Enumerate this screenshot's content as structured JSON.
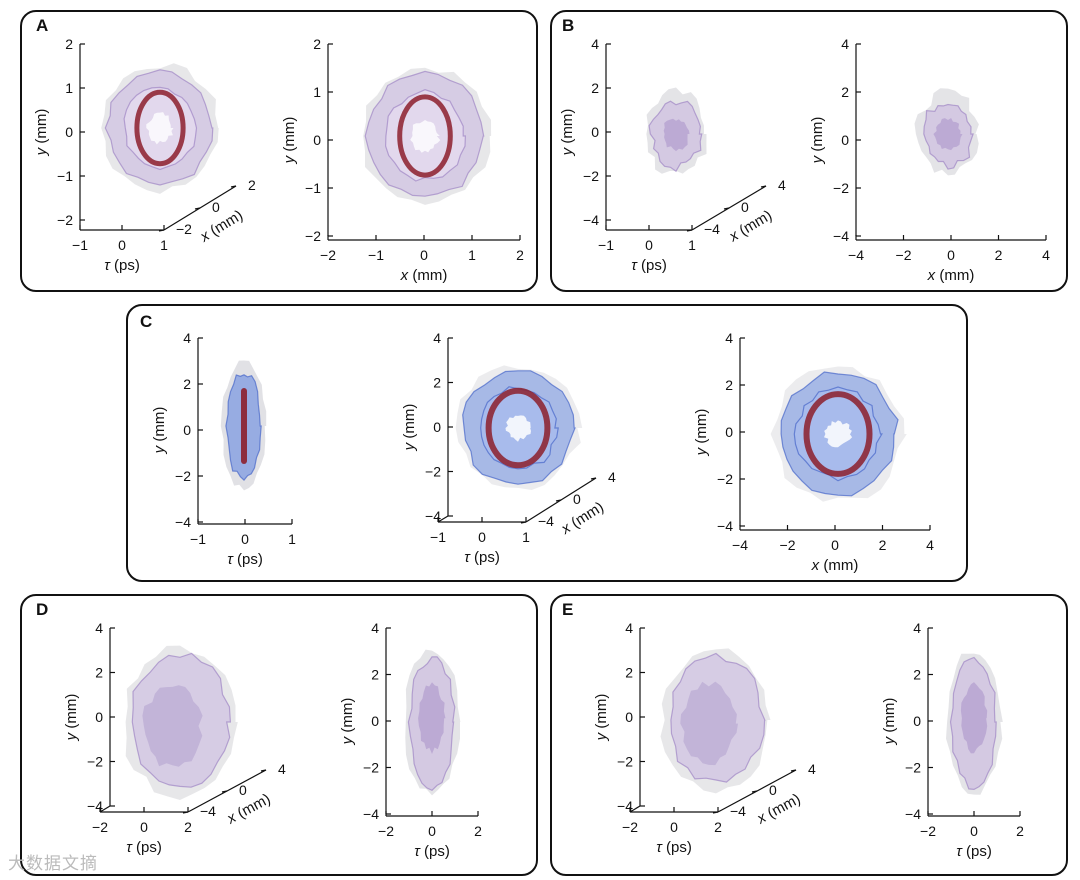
{
  "colors": {
    "lilac": "#c9b7e0",
    "lilac_dark": "#9f86c4",
    "blue": "#6f8fe0",
    "blue_dark": "#4767c9",
    "red": "#8c1f2c",
    "gray": "#c9c9cf"
  },
  "watermark": "大数据文摘",
  "panels": [
    {
      "letter": "A",
      "plots": [
        {
          "kind": "3d",
          "y_label": "y (mm)",
          "y_ticks": [
            "2",
            "1",
            "0",
            "−1",
            "−2"
          ],
          "tau_label": "τ (ps)",
          "tau_ticks": [
            "−1",
            "0",
            "1"
          ],
          "x_label": "x (mm)",
          "x_ticks": [
            "2",
            "0",
            "−2"
          ],
          "blob": "ring-lilac"
        },
        {
          "kind": "2d",
          "y_label": "y (mm)",
          "y_ticks": [
            "2",
            "1",
            "0",
            "−1",
            "−2"
          ],
          "x_label": "x (mm)",
          "x_ticks": [
            "−2",
            "−1",
            "0",
            "1",
            "2"
          ],
          "blob": "ring-lilac"
        }
      ]
    },
    {
      "letter": "B",
      "plots": [
        {
          "kind": "3d",
          "y_label": "y (mm)",
          "y_ticks": [
            "4",
            "2",
            "0",
            "−2",
            "−4"
          ],
          "tau_label": "τ (ps)",
          "tau_ticks": [
            "−1",
            "0",
            "1"
          ],
          "x_label": "x (mm)",
          "x_ticks": [
            "4",
            "0",
            "−4"
          ],
          "blob": "small-lilac"
        },
        {
          "kind": "2d",
          "y_label": "y (mm)",
          "y_ticks": [
            "4",
            "2",
            "0",
            "−2",
            "−4"
          ],
          "x_label": "x (mm)",
          "x_ticks": [
            "−4",
            "−2",
            "0",
            "2",
            "4"
          ],
          "blob": "small-lilac"
        }
      ]
    },
    {
      "letter": "C",
      "plots": [
        {
          "kind": "side",
          "y_label": "y (mm)",
          "y_ticks": [
            "4",
            "2",
            "0",
            "−2",
            "−4"
          ],
          "tau_label": "τ (ps)",
          "tau_ticks": [
            "−1",
            "0",
            "1"
          ],
          "blob": "side-blue"
        },
        {
          "kind": "3d",
          "y_label": "y (mm)",
          "y_ticks": [
            "4",
            "2",
            "0",
            "−2",
            "−4"
          ],
          "tau_label": "τ (ps)",
          "tau_ticks": [
            "−1",
            "0",
            "1"
          ],
          "x_label": "x (mm)",
          "x_ticks": [
            "4",
            "0",
            "−4"
          ],
          "blob": "ring-blue"
        },
        {
          "kind": "2d",
          "y_label": "y (mm)",
          "y_ticks": [
            "4",
            "2",
            "0",
            "−2",
            "−4"
          ],
          "x_label": "x (mm)",
          "x_ticks": [
            "−4",
            "−2",
            "0",
            "2",
            "4"
          ],
          "blob": "ring-blue"
        }
      ]
    },
    {
      "letter": "D",
      "plots": [
        {
          "kind": "3d",
          "y_label": "y (mm)",
          "y_ticks": [
            "4",
            "2",
            "0",
            "−2",
            "−4"
          ],
          "tau_label": "τ (ps)",
          "tau_ticks": [
            "−2",
            "0",
            "2"
          ],
          "x_label": "x (mm)",
          "x_ticks": [
            "4",
            "0",
            "−4"
          ],
          "blob": "big-lilac"
        },
        {
          "kind": "side",
          "y_label": "y (mm)",
          "y_ticks": [
            "4",
            "2",
            "0",
            "−2",
            "−4"
          ],
          "tau_label": "τ (ps)",
          "tau_ticks": [
            "−2",
            "0",
            "2"
          ],
          "blob": "side-lilac"
        }
      ]
    },
    {
      "letter": "E",
      "plots": [
        {
          "kind": "3d",
          "y_label": "y (mm)",
          "y_ticks": [
            "4",
            "2",
            "0",
            "−2",
            "−4"
          ],
          "tau_label": "τ (ps)",
          "tau_ticks": [
            "−2",
            "0",
            "2"
          ],
          "x_label": "x (mm)",
          "x_ticks": [
            "4",
            "0",
            "−4"
          ],
          "blob": "big-lilac"
        },
        {
          "kind": "side",
          "y_label": "y (mm)",
          "y_ticks": [
            "4",
            "2",
            "0",
            "−2",
            "−4"
          ],
          "tau_label": "τ (ps)",
          "tau_ticks": [
            "−2",
            "0",
            "2"
          ],
          "blob": "side-lilac"
        }
      ]
    }
  ]
}
